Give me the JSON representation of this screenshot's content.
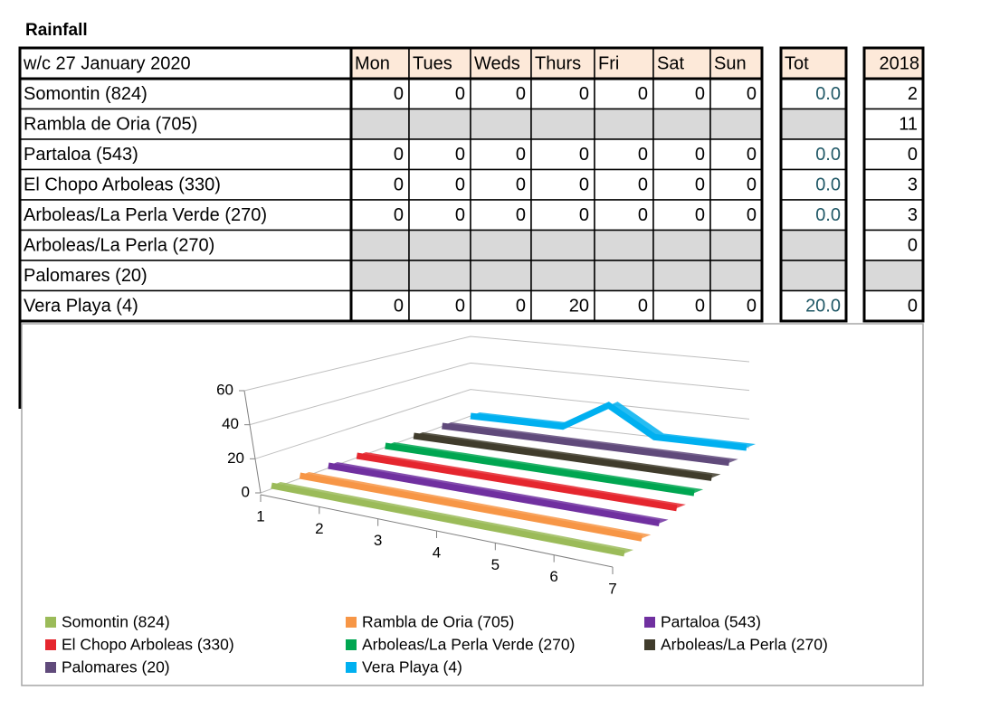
{
  "title": "Rainfall",
  "table": {
    "header": [
      "w/c 27 January 2020",
      "Mon",
      "Tues",
      "Weds",
      "Thurs",
      "Fri",
      "Sat",
      "Sun",
      "Tot",
      "2018"
    ],
    "rows": [
      [
        "Somontin (824)",
        0,
        0,
        0,
        0,
        0,
        0,
        0,
        "0.0",
        2
      ],
      [
        "Rambla de Oria (705)",
        null,
        null,
        null,
        null,
        null,
        null,
        null,
        null,
        11
      ],
      [
        "Partaloa (543)",
        0,
        0,
        0,
        0,
        0,
        0,
        0,
        "0.0",
        0
      ],
      [
        "El Chopo Arboleas (330)",
        0,
        0,
        0,
        0,
        0,
        0,
        0,
        "0.0",
        3
      ],
      [
        "Arboleas/La Perla Verde (270)",
        0,
        0,
        0,
        0,
        0,
        0,
        0,
        "0.0",
        3
      ],
      [
        "Arboleas/La Perla (270)",
        null,
        null,
        null,
        null,
        null,
        null,
        null,
        null,
        0
      ],
      [
        "Palomares (20)",
        null,
        null,
        null,
        null,
        null,
        null,
        null,
        null,
        null
      ],
      [
        "Vera Playa (4)",
        0,
        0,
        0,
        20,
        0,
        0,
        0,
        "20.0",
        0
      ]
    ]
  },
  "chart_data": {
    "type": "line3d",
    "categories": [
      "1",
      "2",
      "3",
      "4",
      "5",
      "6",
      "7"
    ],
    "ylim": [
      0,
      60
    ],
    "yticks": [
      0,
      20,
      40,
      60
    ],
    "grid": true,
    "series": [
      {
        "name": "Somontin (824)",
        "color": "#9bbb59",
        "values": [
          0,
          0,
          0,
          0,
          0,
          0,
          0
        ]
      },
      {
        "name": "Rambla de Oria (705)",
        "color": "#f79646",
        "values": [
          0,
          0,
          0,
          0,
          0,
          0,
          0
        ]
      },
      {
        "name": "Partaloa (543)",
        "color": "#7030a0",
        "values": [
          0,
          0,
          0,
          0,
          0,
          0,
          0
        ]
      },
      {
        "name": "El Chopo Arboleas (330)",
        "color": "#e5262e",
        "values": [
          0,
          0,
          0,
          0,
          0,
          0,
          0
        ]
      },
      {
        "name": "Arboleas/La Perla Verde (270)",
        "color": "#00a651",
        "values": [
          0,
          0,
          0,
          0,
          0,
          0,
          0
        ]
      },
      {
        "name": "Arboleas/La Perla (270)",
        "color": "#403c2c",
        "values": [
          0,
          0,
          0,
          0,
          0,
          0,
          0
        ]
      },
      {
        "name": "Palomares (20)",
        "color": "#604a7b",
        "values": [
          0,
          0,
          0,
          0,
          0,
          0,
          0
        ]
      },
      {
        "name": "Vera Playa (4)",
        "color": "#00b0f0",
        "values": [
          0,
          0,
          0,
          20,
          0,
          0,
          0
        ]
      }
    ]
  }
}
